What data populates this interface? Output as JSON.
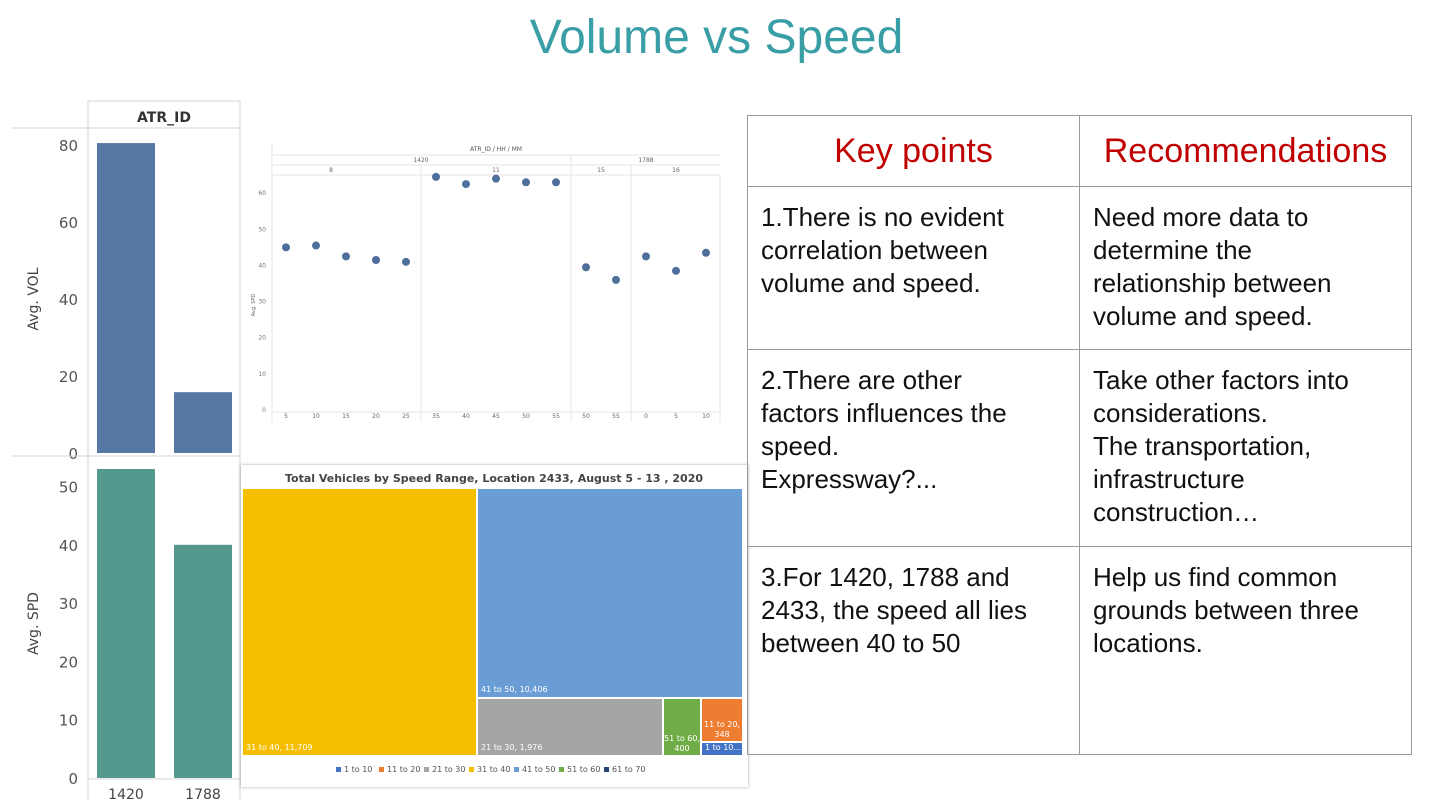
{
  "slide": {
    "title": "Volume vs Speed"
  },
  "chart_data": [
    {
      "type": "bar",
      "header": "ATR_ID",
      "categories": [
        "1420",
        "1788"
      ],
      "panels": [
        {
          "ylabel": "Avg. VOL",
          "ylim": [
            0,
            80
          ],
          "ticks": [
            0,
            20,
            40,
            60,
            80
          ],
          "values": [
            80.5,
            15.8
          ],
          "color": "#5778a4"
        },
        {
          "ylabel": "Avg. SPD",
          "ylim": [
            0,
            53
          ],
          "ticks": [
            0,
            10,
            20,
            30,
            40,
            50
          ],
          "values": [
            53,
            40
          ],
          "color": "#55998e"
        }
      ]
    },
    {
      "type": "scatter",
      "title": "ATR_ID / HH / MM",
      "ylabel": "Avg. SPD",
      "ylim": [
        0,
        70
      ],
      "yticks": [
        0,
        10,
        20,
        30,
        40,
        50,
        60
      ],
      "groups": [
        {
          "atr": "1420",
          "hh": "8",
          "mm": [
            "5",
            "10",
            "15",
            "20",
            "25"
          ],
          "values": [
            45,
            45.5,
            42.5,
            41.5,
            41
          ]
        },
        {
          "atr": "1420",
          "hh": "11",
          "mm": [
            "35",
            "40",
            "45",
            "50",
            "55"
          ],
          "values": [
            64.5,
            62.5,
            64,
            63,
            63
          ]
        },
        {
          "atr": "1788",
          "hh": "15",
          "mm": [
            "50",
            "55"
          ],
          "values": [
            39.5,
            36
          ]
        },
        {
          "atr": "1788",
          "hh": "16",
          "mm": [
            "0",
            "5",
            "10"
          ],
          "values": [
            42.5,
            38.5,
            43.5
          ]
        }
      ],
      "color": "#4e6f9b"
    },
    {
      "type": "treemap",
      "title": "Total Vehicles by Speed Range, Location 2433, August 5 - 13 , 2020",
      "cells": [
        {
          "label": "31 to 40,  11,709",
          "color": "#f5bf00"
        },
        {
          "label": "41 to 50,  10,406",
          "color": "#6a9cd6"
        },
        {
          "label": "21 to 30,  1,976",
          "color": "#a5a5a5"
        },
        {
          "label_line1": "51 to 60,",
          "label_line2": "400",
          "color": "#70ad47"
        },
        {
          "label_line1": "11 to 20,",
          "label_line2": "348",
          "color": "#ed7d31"
        },
        {
          "label": "1 to 10...",
          "color": "#4472c4"
        }
      ],
      "legend": [
        {
          "name": "1 to 10",
          "color": "#4472c4"
        },
        {
          "name": "11 to 20",
          "color": "#ed7d31"
        },
        {
          "name": "21 to 30",
          "color": "#a5a5a5"
        },
        {
          "name": "31 to 40",
          "color": "#f5bf00"
        },
        {
          "name": "41 to 50",
          "color": "#6a9cd6"
        },
        {
          "name": "51 to 60",
          "color": "#70ad47"
        },
        {
          "name": "61 to 70",
          "color": "#264478"
        }
      ]
    }
  ],
  "table": {
    "headers": [
      "Key points",
      "Recommendations"
    ],
    "rows": [
      {
        "key": [
          "1.There is no evident",
          "correlation between",
          "volume and speed."
        ],
        "rec": [
          "Need more data to",
          "determine the",
          "relationship between",
          "volume and speed."
        ]
      },
      {
        "key": [
          "2.There are other",
          "factors influences the",
          "speed.",
          "Expressway?..."
        ],
        "rec": [
          "Take other factors into",
          "considerations.",
          "The transportation,",
          "infrastructure",
          "construction…"
        ]
      },
      {
        "key": [
          "3.For 1420, 1788 and",
          "2433, the speed all lies",
          "between 40 to 50"
        ],
        "rec": [
          "Help us find common",
          "grounds between three",
          "locations."
        ]
      }
    ]
  }
}
